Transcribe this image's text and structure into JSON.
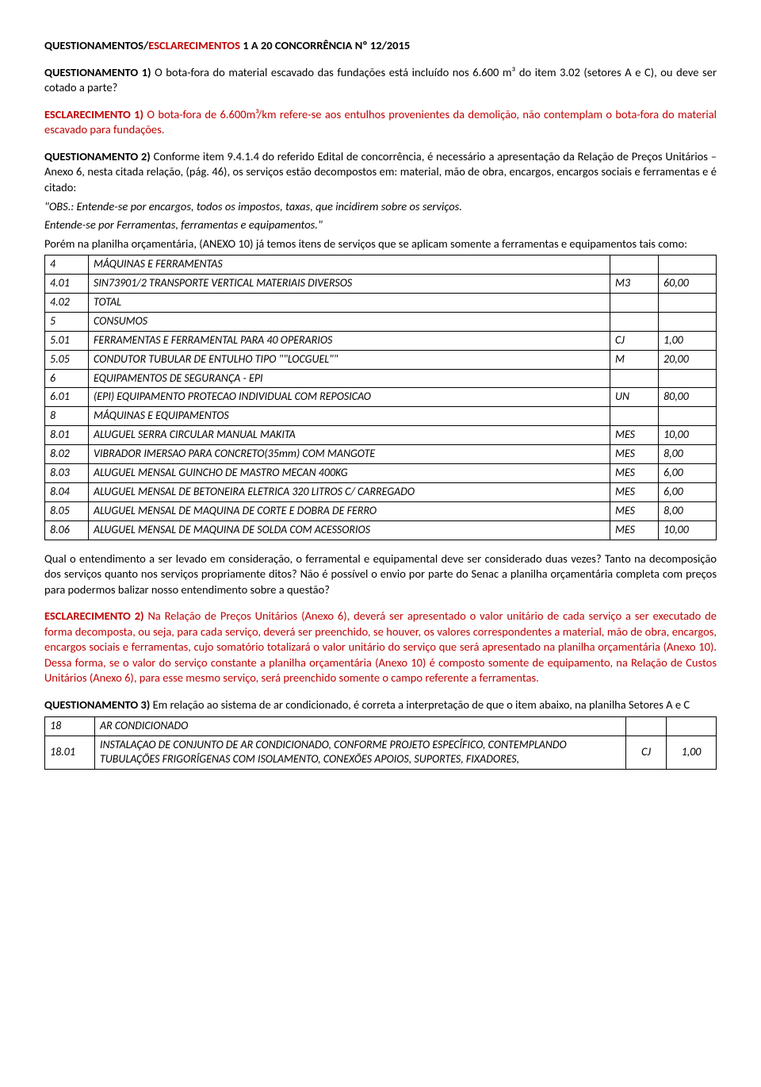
{
  "title": {
    "part1": "QUESTIONAMENTOS/",
    "part2": "ESCLARECIMENTOS",
    "part3": " 1 A 20 CONCORRÊNCIA Nº 12/2015"
  },
  "q1": {
    "label": "QUESTIONAMENTO 1)",
    "text": " O bota-fora do material escavado das fundações está incluído nos 6.600 m³ do item 3.02 (setores A e C), ou deve ser cotado a parte?"
  },
  "e1": {
    "label": "ESCLARECIMENTO 1)",
    "text": " O bota-fora de 6.600m³/km refere-se aos entulhos provenientes da demolição, não contemplam o bota-fora do material escavado para fundações."
  },
  "q2": {
    "label": "QUESTIONAMENTO 2)",
    "p1": " Conforme item 9.4.1.4 do referido Edital de concorrência, é necessário a apresentação da Relação de Preços Unitários – Anexo 6, nesta citada relação, (pág. 46), os serviços estão decompostos em: material, mão de obra, encargos, encargos sociais e ferramentas e é citado:",
    "quote1": "\"OBS.: Entende-se por encargos, todos os impostos, taxas, que incidirem sobre os serviços.",
    "quote2": "Entende-se por Ferramentas, ferramentas e equipamentos.\"",
    "p2": "Porém na planilha orçamentária, (ANEXO 10) já temos itens de serviços que se aplicam somente a ferramentas e equipamentos tais como:"
  },
  "table1": {
    "rows": [
      [
        "4",
        "MÁQUINAS E FERRAMENTAS",
        "",
        ""
      ],
      [
        "4.01",
        "SIN73901/2 TRANSPORTE VERTICAL MATERIAIS DIVERSOS",
        "M3",
        "60,00"
      ],
      [
        "4.02",
        "TOTAL",
        "",
        ""
      ],
      [
        "5",
        "CONSUMOS",
        "",
        ""
      ],
      [
        "5.01",
        "FERRAMENTAS E FERRAMENTAL PARA 40 OPERARIOS",
        "CJ",
        "1,00"
      ],
      [
        "5.05",
        "CONDUTOR TUBULAR DE ENTULHO TIPO \"\"LOCGUEL\"\"",
        "M",
        "20,00"
      ],
      [
        "6",
        "EQUIPAMENTOS DE SEGURANÇA - EPI",
        "",
        ""
      ],
      [
        "6.01",
        "(EPI) EQUIPAMENTO PROTECAO INDIVIDUAL COM REPOSICAO",
        "UN",
        "80,00"
      ],
      [
        "8",
        "MÁQUINAS E EQUIPAMENTOS",
        "",
        ""
      ],
      [
        "8.01",
        "ALUGUEL SERRA CIRCULAR MANUAL MAKITA",
        "MES",
        "10,00"
      ],
      [
        "8.02",
        "VIBRADOR IMERSAO PARA CONCRETO(35mm) COM MANGOTE",
        "MES",
        "8,00"
      ],
      [
        "8.03",
        "ALUGUEL MENSAL GUINCHO DE MASTRO MECAN 400KG",
        "MES",
        "6,00"
      ],
      [
        "8.04",
        "ALUGUEL MENSAL DE BETONEIRA ELETRICA 320 LITROS C/ CARREGADO",
        "MES",
        "6,00"
      ],
      [
        "8.05",
        "ALUGUEL MENSAL DE MAQUINA DE CORTE E DOBRA DE FERRO",
        "MES",
        "8,00"
      ],
      [
        "8.06",
        "ALUGUEL MENSAL DE MAQUINA DE SOLDA COM ACESSORIOS",
        "MES",
        "10,00"
      ]
    ]
  },
  "q2b": "Qual o entendimento a ser levado em consideração, o ferramental e equipamental deve ser considerado duas vezes? Tanto na decomposição dos serviços quanto nos serviços propriamente ditos? Não é possível o envio por parte do Senac a planilha orçamentária completa com preços para podermos balizar nosso entendimento sobre a questão?",
  "e2": {
    "label": "ESCLARECIMENTO 2)",
    "text": " Na Relação de Preços Unitários (Anexo 6), deverá ser apresentado o  valor unitário de cada  serviço a ser executado de forma decomposta, ou seja,  para cada serviço, deverá ser preenchido, se houver, os valores correspondentes a material, mão de obra,  encargos, encargos sociais e ferramentas, cujo somatório totalizará o valor unitário do  serviço que será apresentado na planilha  orçamentária (Anexo 10). Dessa forma, se o valor do serviço constante a planilha orçamentária (Anexo 10) é composto somente de equipamento, na Relação de Custos Unitários (Anexo 6), para esse mesmo serviço, será preenchido somente o campo referente a ferramentas."
  },
  "q3": {
    "label": "QUESTIONAMENTO 3)",
    "text": " Em relação ao sistema de ar condicionado, é correta a interpretação de que o item abaixo, na planilha Setores A e C"
  },
  "table3": {
    "rows": [
      [
        "18",
        "AR CONDICIONADO",
        "",
        ""
      ],
      [
        "18.01",
        "INSTALAÇAO DE CONJUNTO DE AR CONDICIONADO, CONFORME PROJETO ESPECÍFICO, CONTEMPLANDO TUBULAÇÕES FRIGORÍGENAS COM ISOLAMENTO, CONEXÕES APOIOS, SUPORTES, FIXADORES,",
        "CJ",
        "1,00"
      ]
    ]
  }
}
